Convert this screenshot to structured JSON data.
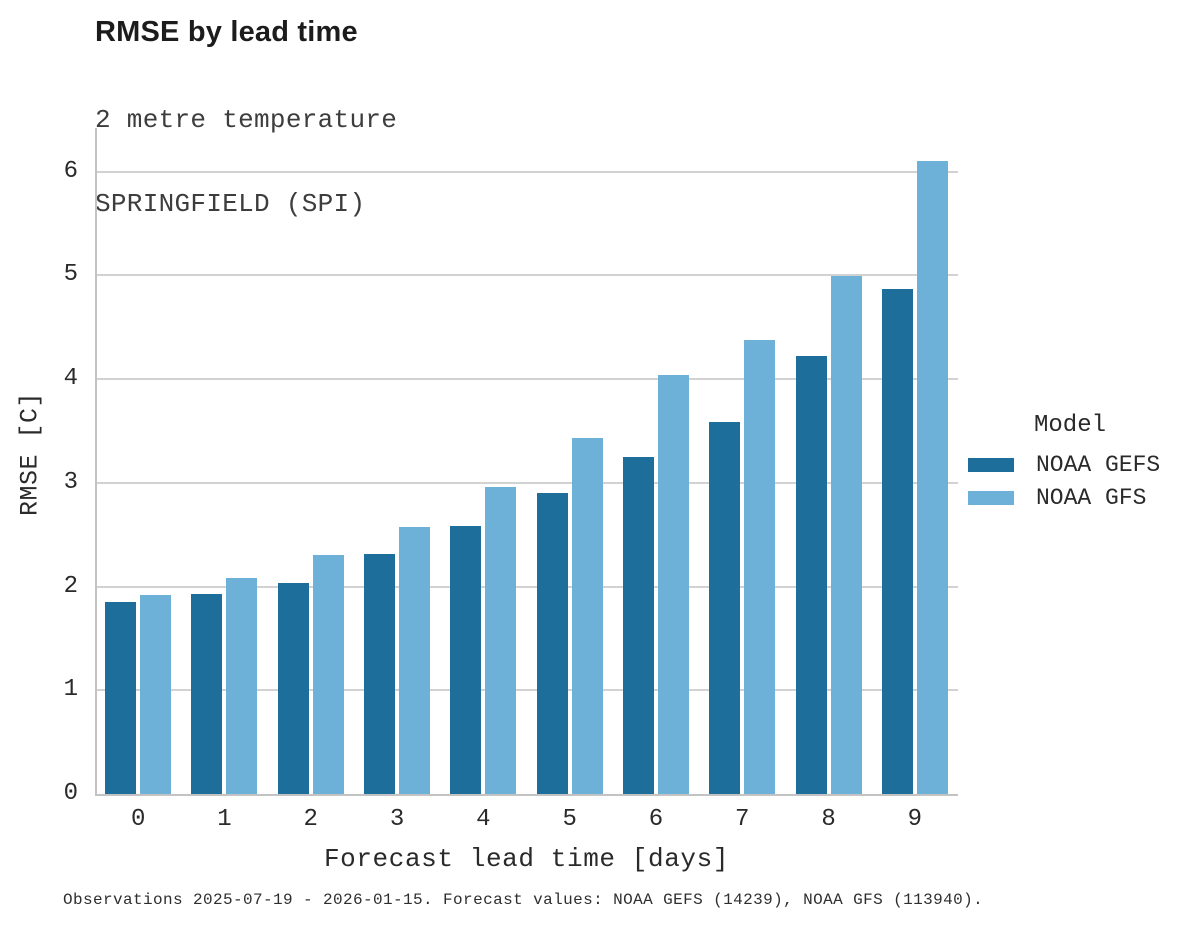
{
  "chart_data": {
    "type": "bar",
    "title": "RMSE by lead time",
    "subtitle1": "2 metre temperature",
    "subtitle2": "SPRINGFIELD (SPI)",
    "categories": [
      "0",
      "1",
      "2",
      "3",
      "4",
      "5",
      "6",
      "7",
      "8",
      "9"
    ],
    "series": [
      {
        "name": "NOAA GEFS",
        "color": "#1e6e9b",
        "values": [
          1.85,
          1.93,
          2.03,
          2.31,
          2.58,
          2.9,
          3.25,
          3.59,
          4.22,
          4.87
        ]
      },
      {
        "name": "NOAA GFS",
        "color": "#6eb1d8",
        "values": [
          1.92,
          2.08,
          2.3,
          2.57,
          2.96,
          3.43,
          4.04,
          4.38,
          4.99,
          6.1
        ]
      }
    ],
    "xlabel": "Forecast lead time [days]",
    "ylabel": "RMSE [C]",
    "ylim": [
      0,
      6.42
    ],
    "yticks": [
      0,
      1,
      2,
      3,
      4,
      5,
      6
    ],
    "grid": "horizontal",
    "legend_title": "Model",
    "legend_position": "right",
    "annotation": "Observations 2025-07-19 - 2026-01-15. Forecast values: NOAA GEFS (14239), NOAA GFS (113940)."
  }
}
